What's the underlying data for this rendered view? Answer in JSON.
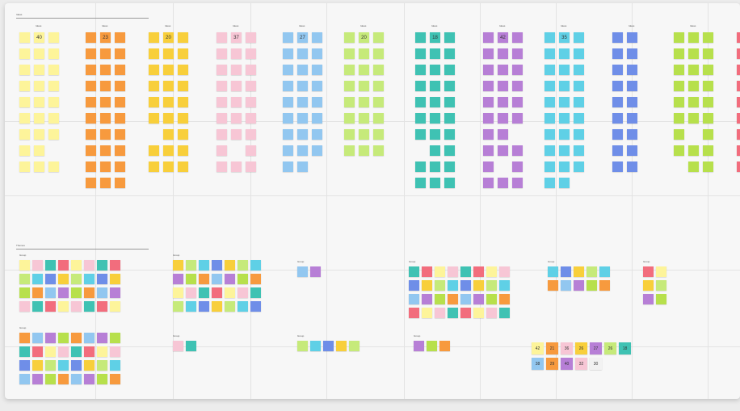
{
  "board": {
    "top_section_title": "Ideas",
    "bottom_section_title": "Themes",
    "top_columns": [
      {
        "label": "Ideas",
        "color": "#fdf49a"
      },
      {
        "label": "Ideas",
        "color": "#f79a3e"
      },
      {
        "label": "Ideas",
        "color": "#f8cf3b"
      },
      {
        "label": "Ideas",
        "color": "#f7c6d5"
      },
      {
        "label": "Ideas",
        "color": "#92c7f0"
      },
      {
        "label": "Ideas",
        "color": "#c6ea7a"
      },
      {
        "label": "Ideas",
        "color": "#3fc2b3"
      },
      {
        "label": "Ideas",
        "color": "#b77fd6"
      },
      {
        "label": "Ideas",
        "color": "#5fd0e6"
      },
      {
        "label": "Ideas",
        "color": "#6f8ee8"
      },
      {
        "label": "Ideas",
        "color": "#b7e04c"
      },
      {
        "label": "Ideas",
        "color": "#f26d7d"
      }
    ],
    "big_numbers": [
      "40",
      "23",
      "20",
      "37",
      "27",
      "20",
      "18",
      "42",
      "35"
    ],
    "theme_groups": [
      {
        "label": "Group"
      },
      {
        "label": "Group"
      },
      {
        "label": "Group"
      },
      {
        "label": "Group"
      },
      {
        "label": "Group"
      },
      {
        "label": "Group"
      },
      {
        "label": "Group"
      },
      {
        "label": "Group"
      },
      {
        "label": "Group"
      },
      {
        "label": "Group"
      },
      {
        "label": "Group"
      }
    ],
    "count_chips": [
      "42",
      "21",
      "36",
      "26",
      "27",
      "26",
      "18",
      "38",
      "29",
      "40",
      "32",
      "30"
    ],
    "count_chip_colors": [
      "#fdf49a",
      "#f79a3e",
      "#f7c6d5",
      "#f8cf3b",
      "#b77fd6",
      "#c6ea7a",
      "#3fc2b3",
      "#92c7f0",
      "#f79a3e",
      "#b77fd6",
      "#f7c6d5",
      "#f2f2f2"
    ]
  }
}
